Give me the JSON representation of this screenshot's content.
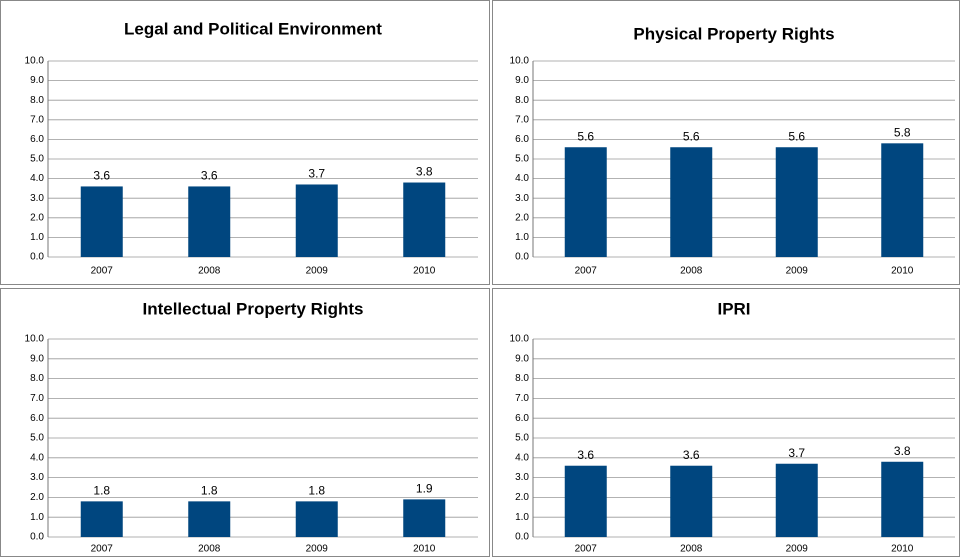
{
  "chart_data": [
    {
      "type": "bar",
      "title": "Legal and Political Environment",
      "categories": [
        "2007",
        "2008",
        "2009",
        "2010"
      ],
      "values": [
        3.6,
        3.6,
        3.7,
        3.8
      ],
      "color": "#00467f",
      "ylim": [
        0,
        10
      ],
      "yticks": [
        {
          "value": 0,
          "label": "0.0"
        },
        {
          "value": 1,
          "label": "1.0"
        },
        {
          "value": 2,
          "label": "2.0"
        },
        {
          "value": 3,
          "label": "3.0"
        },
        {
          "value": 4,
          "label": "4.0"
        },
        {
          "value": 5,
          "label": "5.0"
        },
        {
          "value": 6,
          "label": "6.0"
        },
        {
          "value": 7,
          "label": "7.0"
        },
        {
          "value": 8,
          "label": "8.0"
        },
        {
          "value": 9,
          "label": "9.0"
        },
        {
          "value": 10,
          "label": "10.0"
        }
      ],
      "grid": true
    },
    {
      "type": "bar",
      "title": "Physical Property Rights",
      "categories": [
        "2007",
        "2008",
        "2009",
        "2010"
      ],
      "values": [
        5.6,
        5.6,
        5.6,
        5.8
      ],
      "color": "#00467f",
      "ylim": [
        0,
        10
      ],
      "yticks": [
        {
          "value": 0,
          "label": "0.0"
        },
        {
          "value": 1,
          "label": "1.0"
        },
        {
          "value": 2,
          "label": "2.0"
        },
        {
          "value": 3,
          "label": "3.0"
        },
        {
          "value": 4,
          "label": "4.0"
        },
        {
          "value": 5,
          "label": "5.0"
        },
        {
          "value": 6,
          "label": "6.0"
        },
        {
          "value": 7,
          "label": "7.0"
        },
        {
          "value": 8,
          "label": "8.0"
        },
        {
          "value": 9,
          "label": "9.0"
        },
        {
          "value": 10,
          "label": "10.0"
        }
      ],
      "grid": true
    },
    {
      "type": "bar",
      "title": "Intellectual Property Rights",
      "categories": [
        "2007",
        "2008",
        "2009",
        "2010"
      ],
      "values": [
        1.8,
        1.8,
        1.8,
        1.9
      ],
      "color": "#00467f",
      "ylim": [
        0,
        10
      ],
      "yticks": [
        {
          "value": 0,
          "label": "0.0"
        },
        {
          "value": 1,
          "label": "1.0"
        },
        {
          "value": 2,
          "label": "2.0"
        },
        {
          "value": 3,
          "label": "3.0"
        },
        {
          "value": 4,
          "label": "4.0"
        },
        {
          "value": 5,
          "label": "5.0"
        },
        {
          "value": 6,
          "label": "6.0"
        },
        {
          "value": 7,
          "label": "7.0"
        },
        {
          "value": 8,
          "label": "8.0"
        },
        {
          "value": 9,
          "label": "9.0"
        },
        {
          "value": 10,
          "label": "10.0"
        }
      ],
      "grid": true
    },
    {
      "type": "bar",
      "title": "IPRI",
      "categories": [
        "2007",
        "2008",
        "2009",
        "2010"
      ],
      "values": [
        3.6,
        3.6,
        3.7,
        3.8
      ],
      "color": "#00467f",
      "ylim": [
        0,
        10
      ],
      "yticks": [
        {
          "value": 0,
          "label": "0.0"
        },
        {
          "value": 1,
          "label": "1.0"
        },
        {
          "value": 2,
          "label": "2.0"
        },
        {
          "value": 3,
          "label": "3.0"
        },
        {
          "value": 4,
          "label": "4.0"
        },
        {
          "value": 5,
          "label": "5.0"
        },
        {
          "value": 6,
          "label": "6.0"
        },
        {
          "value": 7,
          "label": "7.0"
        },
        {
          "value": 8,
          "label": "8.0"
        },
        {
          "value": 9,
          "label": "9.0"
        },
        {
          "value": 10,
          "label": "10.0"
        }
      ],
      "grid": true
    }
  ]
}
